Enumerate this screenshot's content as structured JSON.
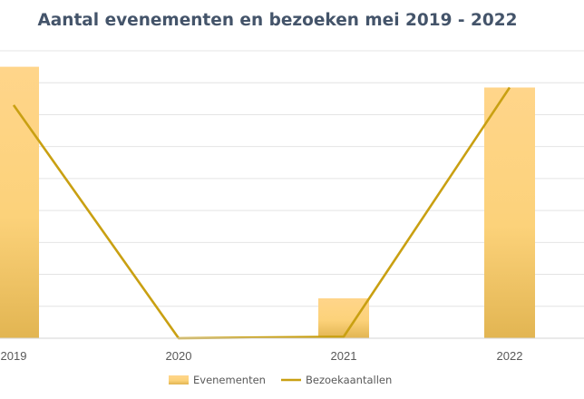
{
  "chart_data": {
    "type": "bar",
    "title": "Aantal evenementen en bezoeken mei 2019 - 2022",
    "categories": [
      "2019",
      "2020",
      "2021",
      "2022"
    ],
    "series": [
      {
        "name": "Evenementen",
        "type": "bar",
        "values": [
          85,
          0,
          12.5,
          78.5
        ],
        "color": "#ffd47f"
      },
      {
        "name": "Bezoekaantallen",
        "type": "line",
        "values": [
          73,
          0,
          0.5,
          78.5
        ],
        "color": "#c9a012"
      }
    ],
    "ylim": [
      0,
      90
    ],
    "grid": true,
    "legend": "bottom"
  }
}
